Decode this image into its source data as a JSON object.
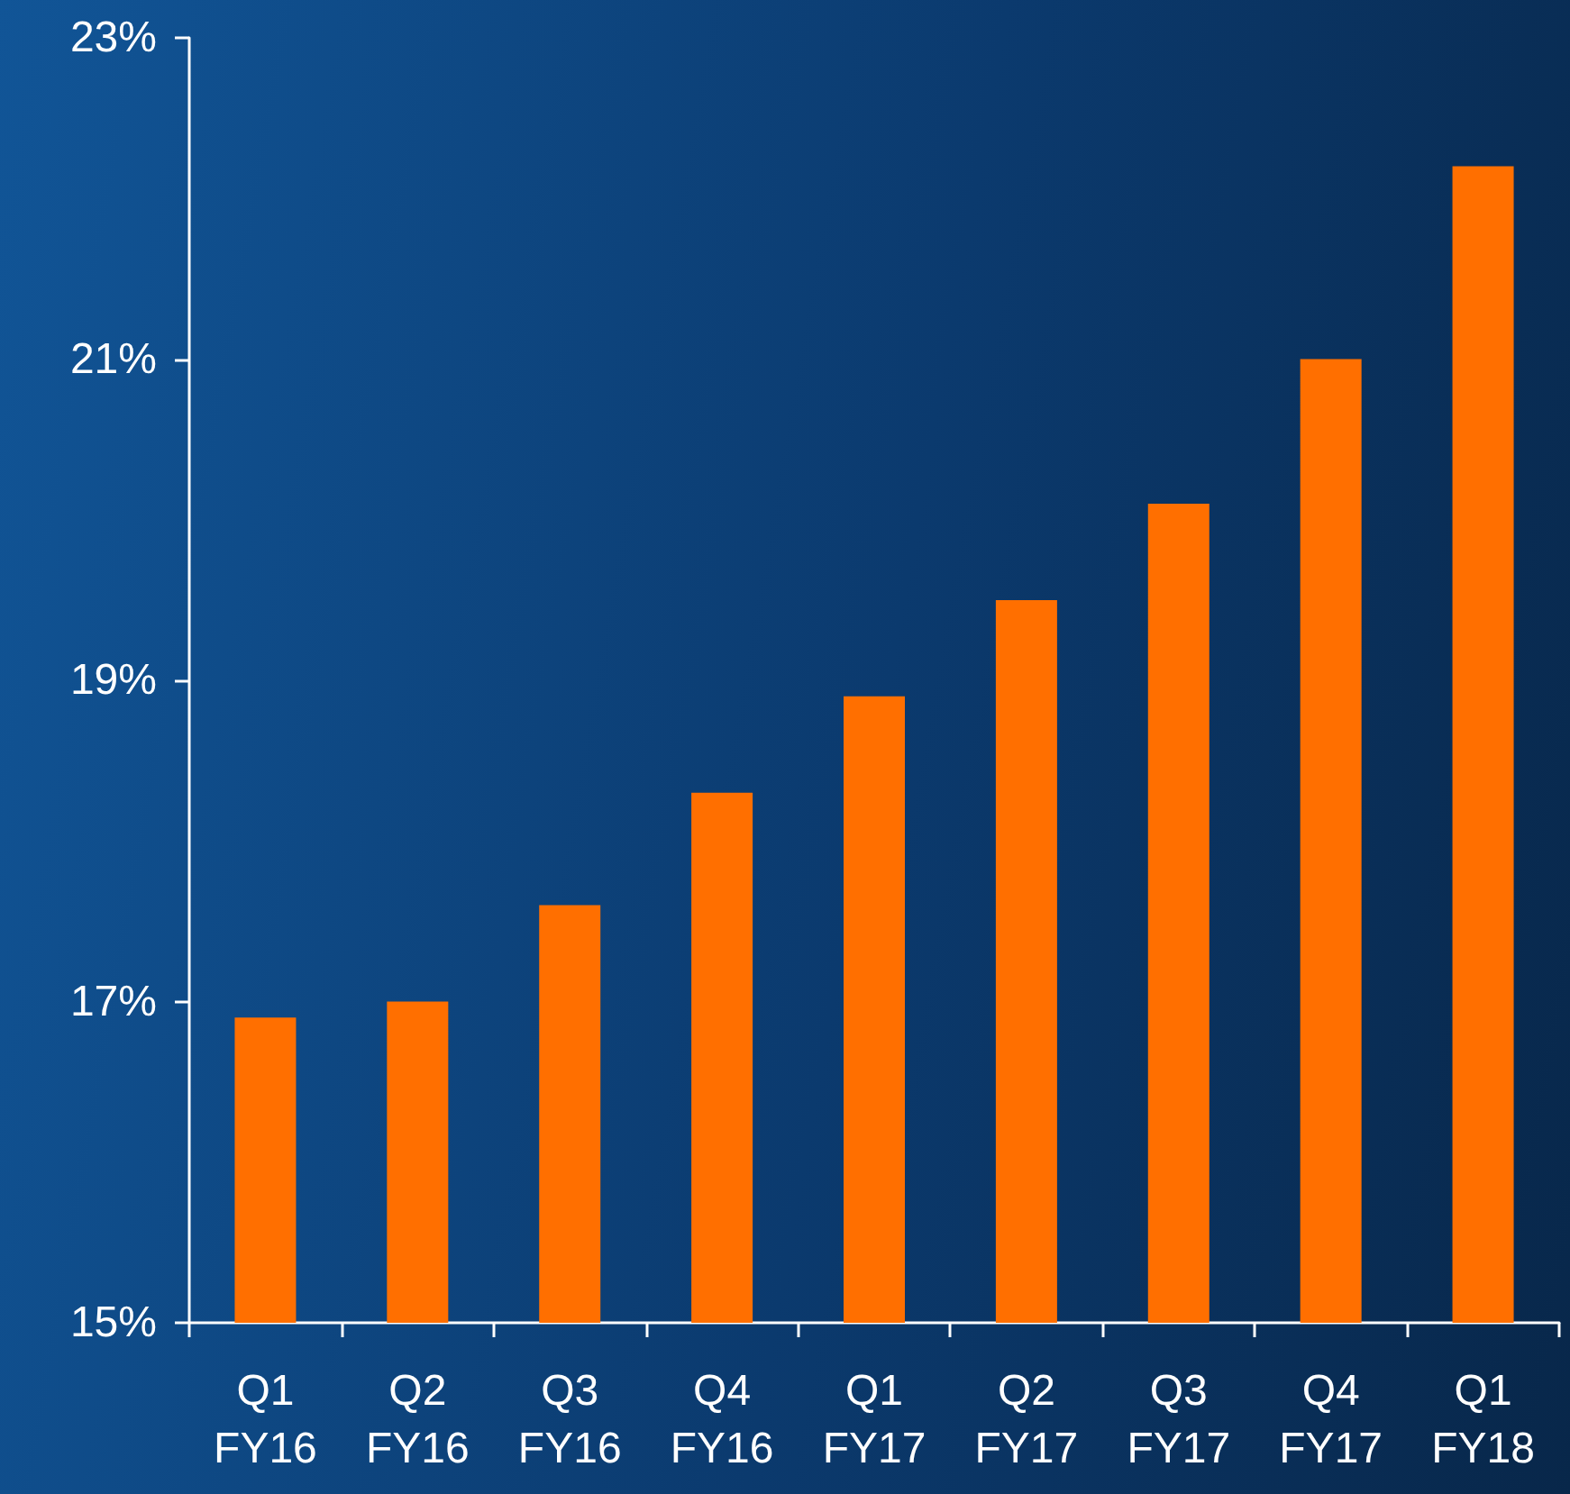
{
  "chart_data": {
    "type": "bar",
    "categories": [
      "Q1\nFY16",
      "Q2\nFY16",
      "Q3\nFY16",
      "Q4\nFY16",
      "Q1\nFY17",
      "Q2\nFY17",
      "Q3\nFY17",
      "Q4\nFY17",
      "Q1\nFY18"
    ],
    "values": [
      16.9,
      17.0,
      17.6,
      18.3,
      18.9,
      19.5,
      20.1,
      21.0,
      22.2
    ],
    "color": "#ff6f00",
    "ylim": [
      15,
      23
    ],
    "yticks": [
      {
        "value": 15,
        "label": "15%"
      },
      {
        "value": 17,
        "label": "17%"
      },
      {
        "value": 19,
        "label": "19%"
      },
      {
        "value": 21,
        "label": "21%"
      },
      {
        "value": 23,
        "label": "23%"
      }
    ],
    "grid": false
  }
}
